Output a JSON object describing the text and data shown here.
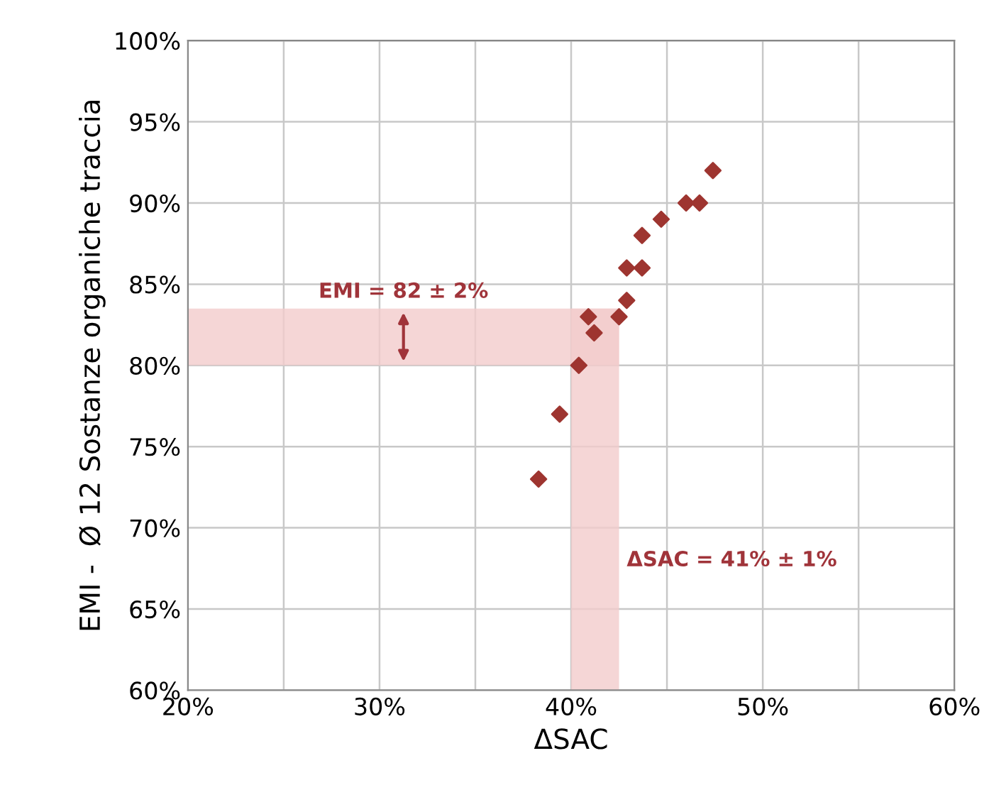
{
  "chart_data": {
    "type": "scatter",
    "xlabel": "ΔSAC",
    "ylabel": "EMI -  Ø 12 Sostanze organiche traccia",
    "x": [
      38.3,
      39.4,
      40.4,
      40.9,
      41.2,
      42.5,
      42.9,
      42.9,
      43.7,
      43.7,
      44.7,
      46.0,
      46.7,
      47.4
    ],
    "values": [
      73,
      77,
      80,
      83,
      82,
      83,
      84,
      86,
      86,
      88,
      89,
      90,
      90,
      92
    ],
    "color": "#9e3530",
    "marker": "diamond",
    "grid": true,
    "xlim": [
      20,
      60
    ],
    "xticks": [
      {
        "value": 20,
        "label": "20%"
      },
      {
        "value": 25,
        "label": null
      },
      {
        "value": 30,
        "label": "30%"
      },
      {
        "value": 35,
        "label": null
      },
      {
        "value": 40,
        "label": "40%"
      },
      {
        "value": 45,
        "label": null
      },
      {
        "value": 50,
        "label": "50%"
      },
      {
        "value": 55,
        "label": null
      },
      {
        "value": 60,
        "label": "60%"
      }
    ],
    "ylim": [
      60,
      100
    ],
    "yticks": [
      {
        "value": 60,
        "label": "60%"
      },
      {
        "value": 65,
        "label": "65%"
      },
      {
        "value": 70,
        "label": "70%"
      },
      {
        "value": 75,
        "label": "75%"
      },
      {
        "value": 80,
        "label": "80%"
      },
      {
        "value": 85,
        "label": "85%"
      },
      {
        "value": 90,
        "label": "90%"
      },
      {
        "value": 95,
        "label": "95%"
      },
      {
        "value": 100,
        "label": "100%"
      }
    ],
    "bands": [
      {
        "axis": "y",
        "from": 80,
        "to": 83.5,
        "color": "#f2cccc",
        "label": "EMI = 82 ± 2%"
      },
      {
        "axis": "x",
        "from": 40,
        "to": 42.5,
        "color": "#f2cccc",
        "label": "ΔSAC = 41% ± 1%"
      }
    ]
  }
}
